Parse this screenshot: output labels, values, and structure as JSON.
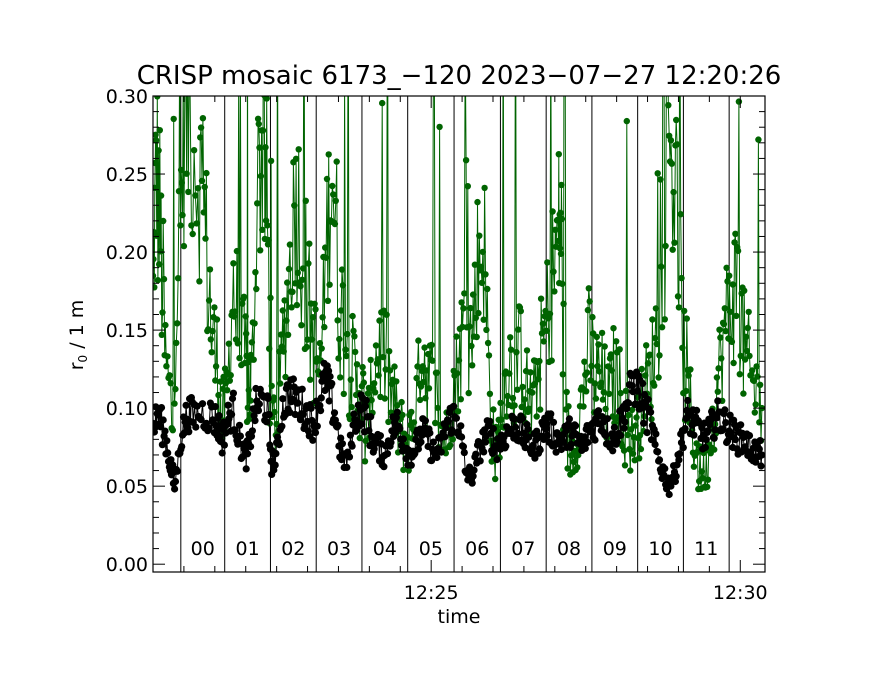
{
  "chart_data": {
    "type": "scatter",
    "title": "CRISP mosaic 6173_−120 2023−07−27 12:20:26",
    "xlabel": "time",
    "ylabel": "r₀ / 1 m",
    "ylabel_main": "r",
    "ylabel_sub": "0",
    "ylabel_rest": " / 1 m",
    "xlim": [
      20.5,
      30.4
    ],
    "ylim": [
      -0.005,
      0.3
    ],
    "y_ticks": [
      0.0,
      0.05,
      0.1,
      0.15,
      0.2,
      0.25,
      0.3
    ],
    "y_tick_labels": [
      "0.00",
      "0.05",
      "0.10",
      "0.15",
      "0.20",
      "0.25",
      "0.30"
    ],
    "x_ticks": [
      25,
      30
    ],
    "x_tick_labels": [
      "12:25",
      "12:30"
    ],
    "x_unit": "minutes after 12:00",
    "scan_boundaries": [
      20.95,
      21.66,
      22.4,
      23.14,
      23.88,
      24.62,
      25.37,
      26.12,
      26.86,
      27.6,
      28.34,
      29.08,
      29.82
    ],
    "scan_labels": [
      "00",
      "01",
      "02",
      "03",
      "04",
      "05",
      "06",
      "07",
      "08",
      "09",
      "10",
      "11"
    ],
    "series": [
      {
        "name": "r0 (green)",
        "color": "#006400",
        "anchors": [
          [
            20.5,
            0.17
          ],
          [
            20.55,
            0.26
          ],
          [
            20.62,
            0.21
          ],
          [
            20.7,
            0.13
          ],
          [
            20.82,
            0.09
          ],
          [
            20.92,
            0.2
          ],
          [
            21.0,
            0.28
          ],
          [
            21.1,
            0.29
          ],
          [
            21.25,
            0.25
          ],
          [
            21.35,
            0.21
          ],
          [
            21.45,
            0.15
          ],
          [
            21.55,
            0.12
          ],
          [
            21.62,
            0.09
          ],
          [
            21.7,
            0.11
          ],
          [
            21.8,
            0.18
          ],
          [
            21.9,
            0.14
          ],
          [
            22.0,
            0.13
          ],
          [
            22.05,
            0.11
          ],
          [
            22.1,
            0.12
          ],
          [
            22.2,
            0.24
          ],
          [
            22.28,
            0.27
          ],
          [
            22.35,
            0.22
          ],
          [
            22.42,
            0.09
          ],
          [
            22.5,
            0.09
          ],
          [
            22.6,
            0.14
          ],
          [
            22.7,
            0.18
          ],
          [
            22.8,
            0.24
          ],
          [
            22.9,
            0.21
          ],
          [
            23.0,
            0.17
          ],
          [
            23.1,
            0.14
          ],
          [
            23.2,
            0.12
          ],
          [
            23.3,
            0.2
          ],
          [
            23.4,
            0.26
          ],
          [
            23.5,
            0.17
          ],
          [
            23.6,
            0.15
          ],
          [
            23.7,
            0.13
          ],
          [
            23.8,
            0.11
          ],
          [
            23.88,
            0.11
          ],
          [
            23.95,
            0.08
          ],
          [
            24.05,
            0.12
          ],
          [
            24.15,
            0.14
          ],
          [
            24.25,
            0.13
          ],
          [
            24.35,
            0.11
          ],
          [
            24.45,
            0.09
          ],
          [
            24.55,
            0.08
          ],
          [
            24.65,
            0.08
          ],
          [
            24.75,
            0.1
          ],
          [
            24.85,
            0.14
          ],
          [
            24.95,
            0.12
          ],
          [
            25.05,
            0.11
          ],
          [
            25.15,
            0.09
          ],
          [
            25.25,
            0.08
          ],
          [
            25.35,
            0.11
          ],
          [
            25.45,
            0.13
          ],
          [
            25.55,
            0.16
          ],
          [
            25.65,
            0.14
          ],
          [
            25.75,
            0.19
          ],
          [
            25.85,
            0.21
          ],
          [
            25.95,
            0.1
          ],
          [
            26.05,
            0.07
          ],
          [
            26.15,
            0.1
          ],
          [
            26.25,
            0.13
          ],
          [
            26.35,
            0.12
          ],
          [
            26.45,
            0.14
          ],
          [
            26.55,
            0.11
          ],
          [
            26.65,
            0.1
          ],
          [
            26.75,
            0.13
          ],
          [
            26.85,
            0.15
          ],
          [
            26.95,
            0.18
          ],
          [
            27.05,
            0.21
          ],
          [
            27.1,
            0.22
          ],
          [
            27.15,
            0.1
          ],
          [
            27.25,
            0.07
          ],
          [
            27.35,
            0.08
          ],
          [
            27.45,
            0.11
          ],
          [
            27.55,
            0.14
          ],
          [
            27.65,
            0.12
          ],
          [
            27.75,
            0.12
          ],
          [
            27.85,
            0.1
          ],
          [
            27.95,
            0.12
          ],
          [
            28.05,
            0.11
          ],
          [
            28.15,
            0.09
          ],
          [
            28.25,
            0.08
          ],
          [
            28.35,
            0.09
          ],
          [
            28.45,
            0.11
          ],
          [
            28.55,
            0.12
          ],
          [
            28.65,
            0.15
          ],
          [
            28.75,
            0.18
          ],
          [
            28.85,
            0.27
          ],
          [
            28.95,
            0.25
          ],
          [
            29.05,
            0.15
          ],
          [
            29.15,
            0.11
          ],
          [
            29.25,
            0.08
          ],
          [
            29.35,
            0.06
          ],
          [
            29.45,
            0.06
          ],
          [
            29.55,
            0.09
          ],
          [
            29.65,
            0.12
          ],
          [
            29.75,
            0.15
          ],
          [
            29.85,
            0.17
          ],
          [
            29.95,
            0.18
          ],
          [
            30.05,
            0.14
          ],
          [
            30.15,
            0.12
          ],
          [
            30.25,
            0.11
          ],
          [
            30.35,
            0.1
          ]
        ]
      },
      {
        "name": "r0 (black)",
        "color": "#000000",
        "anchors": [
          [
            20.5,
            0.088
          ],
          [
            20.58,
            0.095
          ],
          [
            20.68,
            0.085
          ],
          [
            20.78,
            0.065
          ],
          [
            20.85,
            0.05
          ],
          [
            20.95,
            0.08
          ],
          [
            21.05,
            0.097
          ],
          [
            21.15,
            0.095
          ],
          [
            21.3,
            0.097
          ],
          [
            21.45,
            0.095
          ],
          [
            21.55,
            0.09
          ],
          [
            21.62,
            0.08
          ],
          [
            21.7,
            0.092
          ],
          [
            21.8,
            0.099
          ],
          [
            21.9,
            0.08
          ],
          [
            22.0,
            0.068
          ],
          [
            22.05,
            0.075
          ],
          [
            22.15,
            0.1
          ],
          [
            22.25,
            0.105
          ],
          [
            22.35,
            0.1
          ],
          [
            22.42,
            0.065
          ],
          [
            22.5,
            0.07
          ],
          [
            22.6,
            0.1
          ],
          [
            22.7,
            0.11
          ],
          [
            22.8,
            0.105
          ],
          [
            22.9,
            0.102
          ],
          [
            23.0,
            0.095
          ],
          [
            23.1,
            0.09
          ],
          [
            23.2,
            0.105
          ],
          [
            23.28,
            0.12
          ],
          [
            23.35,
            0.11
          ],
          [
            23.45,
            0.095
          ],
          [
            23.55,
            0.07
          ],
          [
            23.65,
            0.065
          ],
          [
            23.75,
            0.09
          ],
          [
            23.85,
            0.1
          ],
          [
            23.95,
            0.095
          ],
          [
            24.05,
            0.08
          ],
          [
            24.15,
            0.075
          ],
          [
            24.25,
            0.07
          ],
          [
            24.35,
            0.085
          ],
          [
            24.45,
            0.09
          ],
          [
            24.55,
            0.08
          ],
          [
            24.65,
            0.07
          ],
          [
            24.75,
            0.075
          ],
          [
            24.85,
            0.085
          ],
          [
            24.95,
            0.08
          ],
          [
            25.05,
            0.07
          ],
          [
            25.15,
            0.075
          ],
          [
            25.25,
            0.09
          ],
          [
            25.35,
            0.095
          ],
          [
            25.45,
            0.09
          ],
          [
            25.55,
            0.06
          ],
          [
            25.65,
            0.055
          ],
          [
            25.75,
            0.07
          ],
          [
            25.85,
            0.08
          ],
          [
            25.95,
            0.085
          ],
          [
            26.05,
            0.075
          ],
          [
            26.15,
            0.08
          ],
          [
            26.25,
            0.085
          ],
          [
            26.35,
            0.09
          ],
          [
            26.45,
            0.085
          ],
          [
            26.55,
            0.08
          ],
          [
            26.65,
            0.075
          ],
          [
            26.75,
            0.08
          ],
          [
            26.85,
            0.09
          ],
          [
            26.95,
            0.085
          ],
          [
            27.05,
            0.08
          ],
          [
            27.15,
            0.08
          ],
          [
            27.25,
            0.085
          ],
          [
            27.35,
            0.08
          ],
          [
            27.45,
            0.075
          ],
          [
            27.55,
            0.085
          ],
          [
            27.65,
            0.09
          ],
          [
            27.75,
            0.095
          ],
          [
            27.85,
            0.085
          ],
          [
            27.95,
            0.08
          ],
          [
            28.05,
            0.09
          ],
          [
            28.15,
            0.1
          ],
          [
            28.25,
            0.115
          ],
          [
            28.35,
            0.112
          ],
          [
            28.45,
            0.1
          ],
          [
            28.55,
            0.09
          ],
          [
            28.65,
            0.07
          ],
          [
            28.75,
            0.06
          ],
          [
            28.85,
            0.05
          ],
          [
            28.95,
            0.06
          ],
          [
            29.05,
            0.08
          ],
          [
            29.15,
            0.095
          ],
          [
            29.25,
            0.09
          ],
          [
            29.35,
            0.085
          ],
          [
            29.45,
            0.08
          ],
          [
            29.55,
            0.09
          ],
          [
            29.65,
            0.095
          ],
          [
            29.75,
            0.09
          ],
          [
            29.85,
            0.085
          ],
          [
            29.95,
            0.08
          ],
          [
            30.05,
            0.08
          ],
          [
            30.15,
            0.075
          ],
          [
            30.25,
            0.072
          ],
          [
            30.35,
            0.07
          ]
        ]
      }
    ]
  }
}
